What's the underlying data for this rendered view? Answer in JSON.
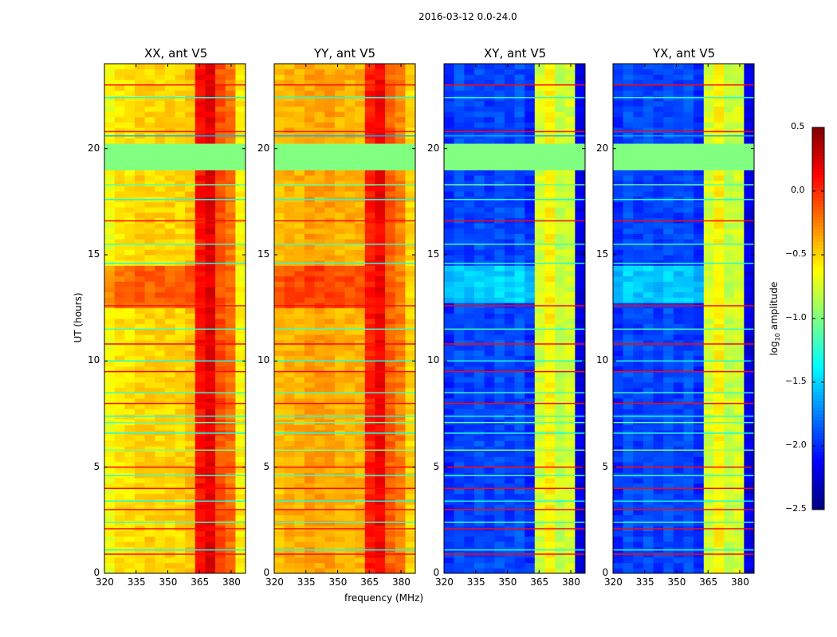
{
  "chart_data": {
    "type": "heatmap",
    "title": "2016-03-12 0.0-24.0",
    "xlabel": "frequency (MHz)",
    "ylabel": "UT (hours)",
    "xlim": [
      320,
      386.8
    ],
    "ylim": [
      0,
      24
    ],
    "xticks": [
      "320",
      "335",
      "350",
      "365",
      "380"
    ],
    "yticks": [
      "0",
      "5",
      "10",
      "15",
      "20"
    ],
    "freq_bin_centers": [
      322.4,
      327.2,
      331.9,
      336.7,
      341.5,
      346.2,
      351.0,
      355.8,
      360.5,
      365.3,
      370.1,
      374.8,
      379.6,
      384.4
    ],
    "colorbar": {
      "label_prefix": "log",
      "label_sub": "10",
      "label_suffix": " amplitude",
      "colormap": "jet",
      "range": [
        -2.5,
        0.5
      ],
      "ticks": [
        "0.5",
        "0.0",
        "−0.5",
        "−1.0",
        "−1.5",
        "−2.0",
        "−2.5"
      ]
    },
    "flagged_interval": {
      "from": 19.0,
      "to": 20.3,
      "value": -1.0
    },
    "lines": [
      {
        "t": 0.9,
        "value": 0.1
      },
      {
        "t": 1.1,
        "value": -1.3
      },
      {
        "t": 2.1,
        "value": 0.1
      },
      {
        "t": 2.4,
        "value": -1.2
      },
      {
        "t": 3.0,
        "value": 0.1
      },
      {
        "t": 3.4,
        "value": -1.3
      },
      {
        "t": 4.0,
        "value": 0.1
      },
      {
        "t": 4.6,
        "value": -1.2
      },
      {
        "t": 5.0,
        "value": 0.1
      },
      {
        "t": 5.8,
        "value": -1.0
      },
      {
        "t": 6.6,
        "value": -1.3
      },
      {
        "t": 7.1,
        "value": -1.1
      },
      {
        "t": 7.4,
        "value": -1.3
      },
      {
        "t": 8.0,
        "value": 0.1
      },
      {
        "t": 8.5,
        "value": -1.2
      },
      {
        "t": 9.5,
        "value": 0.1
      },
      {
        "t": 10.0,
        "value": -1.3
      },
      {
        "t": 10.8,
        "value": 0.1
      },
      {
        "t": 11.5,
        "value": -1.2
      },
      {
        "t": 12.6,
        "value": 0.1
      },
      {
        "t": 14.6,
        "value": -1.3
      },
      {
        "t": 15.5,
        "value": -1.2
      },
      {
        "t": 16.6,
        "value": 0.1
      },
      {
        "t": 17.6,
        "value": -1.3
      },
      {
        "t": 18.3,
        "value": -1.1
      },
      {
        "t": 20.6,
        "value": -1.6
      },
      {
        "t": 20.8,
        "value": 0.1
      },
      {
        "t": 22.4,
        "value": -1.3
      },
      {
        "t": 23.0,
        "value": 0.1
      }
    ],
    "panels": [
      {
        "title": "XX, ant V5",
        "freq_profile": [
          -0.65,
          -0.55,
          -0.55,
          -0.5,
          -0.5,
          -0.5,
          -0.5,
          -0.5,
          -0.45,
          0.1,
          0.2,
          -0.1,
          -0.2,
          -0.6
        ],
        "band": {
          "from": 12.6,
          "to": 14.5,
          "delta": 0.35
        }
      },
      {
        "title": "YY, ant V5",
        "freq_profile": [
          -0.45,
          -0.4,
          -0.4,
          -0.35,
          -0.35,
          -0.35,
          -0.4,
          -0.4,
          -0.4,
          0.05,
          0.15,
          -0.15,
          -0.25,
          -0.5
        ],
        "band": {
          "from": 12.6,
          "to": 14.5,
          "delta": 0.3
        }
      },
      {
        "title": "XY, ant V5",
        "freq_profile": [
          -2.0,
          -1.9,
          -1.95,
          -1.9,
          -1.95,
          -1.9,
          -1.95,
          -1.9,
          -2.0,
          -0.75,
          -0.6,
          -0.8,
          -0.75,
          -2.2
        ],
        "band": {
          "from": 12.7,
          "to": 14.5,
          "delta": 0.4
        }
      },
      {
        "title": "YX, ant V5",
        "freq_profile": [
          -2.0,
          -1.9,
          -1.95,
          -1.9,
          -1.95,
          -1.9,
          -1.95,
          -1.9,
          -2.0,
          -0.75,
          -0.6,
          -0.8,
          -0.75,
          -2.2
        ],
        "band": {
          "from": 12.7,
          "to": 14.5,
          "delta": 0.4
        }
      }
    ]
  }
}
